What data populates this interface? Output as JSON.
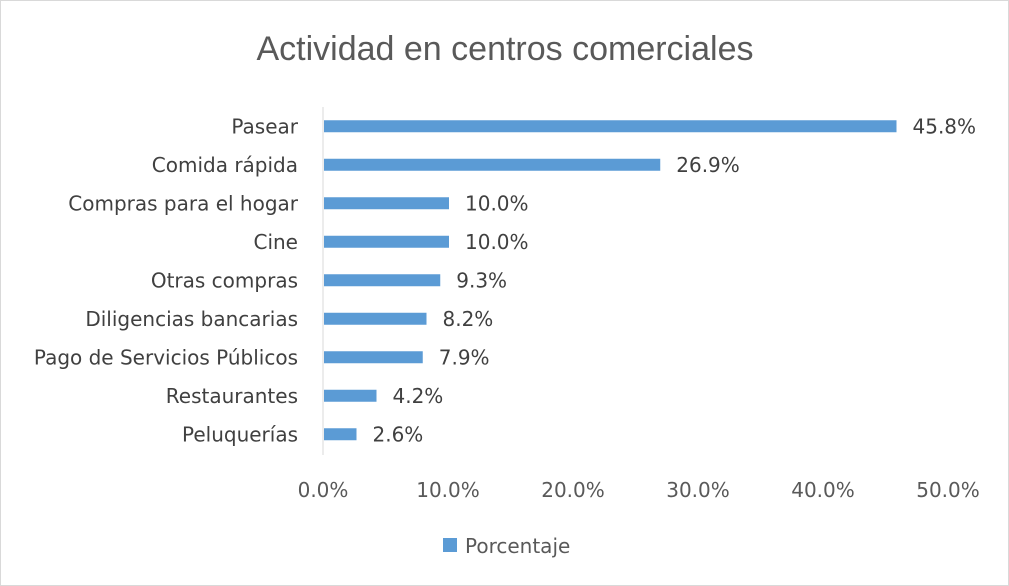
{
  "chart_data": {
    "type": "bar",
    "orientation": "horizontal",
    "title": "Actividad en centros comerciales",
    "categories": [
      "Pasear",
      "Comida rápida",
      "Compras para el hogar",
      "Cine",
      "Otras compras",
      "Diligencias bancarias",
      "Pago de Servicios Públicos",
      "Restaurantes",
      "Peluquerías"
    ],
    "series": [
      {
        "name": "Porcentaje",
        "values": [
          45.8,
          26.9,
          10.0,
          10.0,
          9.3,
          8.2,
          7.9,
          4.2,
          2.6
        ],
        "labels": [
          "45.8%",
          "26.9%",
          "10.0%",
          "10.0%",
          "9.3%",
          "8.2%",
          "7.9%",
          "4.2%",
          "2.6%"
        ],
        "color": "#5b9bd5"
      }
    ],
    "xlim": [
      0,
      50
    ],
    "xticks": [
      0,
      10,
      20,
      30,
      40,
      50
    ],
    "xtick_labels": [
      "0.0%",
      "10.0%",
      "20.0%",
      "30.0%",
      "40.0%",
      "50.0%"
    ],
    "grid": false,
    "legend": "bottom"
  }
}
